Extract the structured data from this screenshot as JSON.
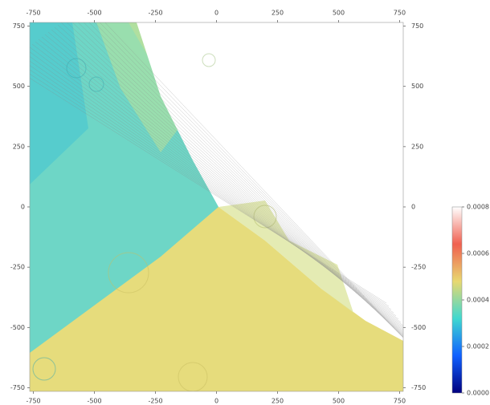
{
  "chart_data": {
    "type": "image",
    "xlim": [
      -765,
      765
    ],
    "ylim": [
      -765,
      765
    ],
    "xticks": [
      -750,
      -500,
      -250,
      0,
      250,
      500,
      750
    ],
    "yticks": [
      -750,
      -500,
      -250,
      0,
      250,
      500,
      750
    ],
    "colorbar": {
      "clim": [
        0,
        0.0008
      ],
      "ticks": [
        {
          "value": 0,
          "label": "0.0000"
        },
        {
          "value": 0.0002,
          "label": "0.0002"
        },
        {
          "value": 0.0004,
          "label": "0.0004"
        },
        {
          "value": 0.0006,
          "label": "0.0006"
        },
        {
          "value": 0.0008,
          "label": "0.0008"
        }
      ],
      "colormap": [
        "#00007f",
        "#1060ff",
        "#40d8d0",
        "#e8d870",
        "#f06050",
        "#ffffff"
      ]
    }
  }
}
